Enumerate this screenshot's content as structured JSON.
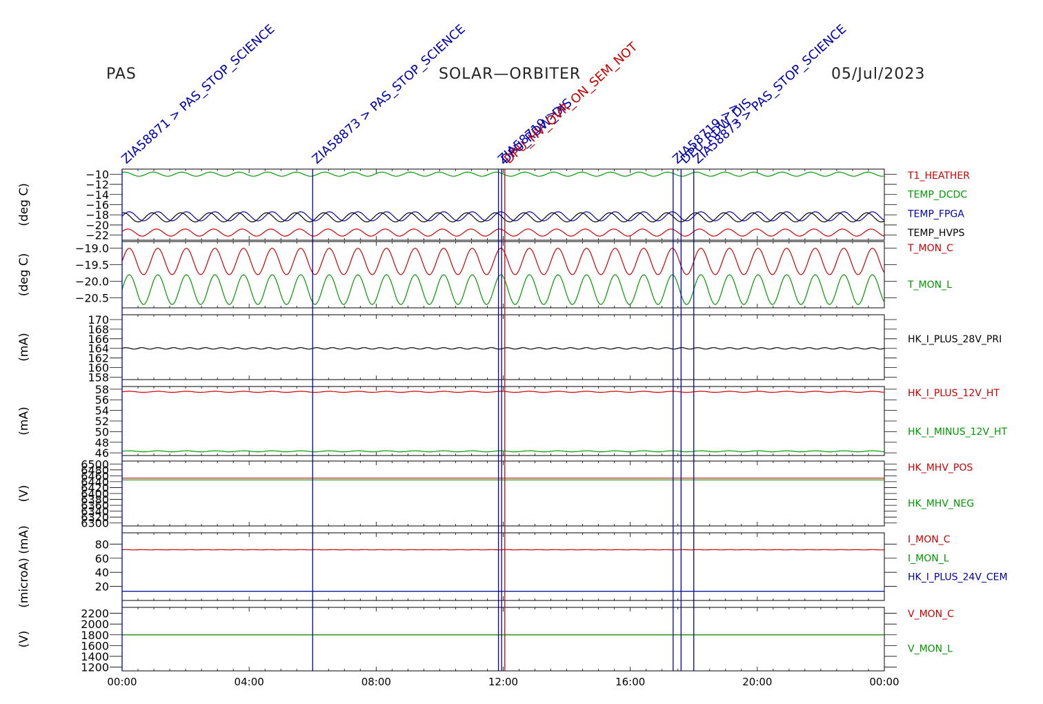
{
  "header": {
    "instrument": "PAS",
    "mission": "SOLAR—ORBITER",
    "date": "05/Jul/2023"
  },
  "colors": {
    "red": "#cc0000",
    "green": "#009900",
    "blue": "#0000aa",
    "black": "#000000"
  },
  "chart_data": {
    "type": "line",
    "x_range": [
      "00:00",
      "24:00"
    ],
    "x_ticks": [
      "00:00",
      "04:00",
      "08:00",
      "12:00",
      "16:00",
      "20:00",
      "00:00"
    ],
    "x_tick_hours": [
      0,
      4,
      8,
      12,
      16,
      20,
      24
    ],
    "events": [
      {
        "label": "ZIA58871 > PAS_STOP_SCIENCE",
        "hour": 0.0,
        "color": "#0000aa"
      },
      {
        "label": "ZIA58873 > PAS_STOP_SCIENCE",
        "hour": 6.0,
        "color": "#0000aa"
      },
      {
        "label": "ZIA58719 >>",
        "hour": 11.85,
        "color": "#0000aa"
      },
      {
        "label": "DPU_RDW_DIS",
        "hour": 11.95,
        "color": "#0000aa"
      },
      {
        "label": "DPU_HV_OVR_ON_SEM_NOT",
        "hour": 12.05,
        "color": "#cc0000"
      },
      {
        "label": "ZIA58719 >>",
        "hour": 17.35,
        "color": "#0000aa"
      },
      {
        "label": "DPU_RDW_DIS",
        "hour": 17.6,
        "color": "#0000aa"
      },
      {
        "label": "ZIA58873 > PAS_STOP_SCIENCE",
        "hour": 18.0,
        "color": "#0000aa"
      }
    ],
    "panels": [
      {
        "ylabel": "(deg C)",
        "ylim": [
          -23,
          -9
        ],
        "yticks": [
          -10,
          -12,
          -14,
          -16,
          -18,
          -20,
          -22
        ],
        "ytick_labels": [
          "−10",
          "−12",
          "−14",
          "−16",
          "−18",
          "−20",
          "−22"
        ],
        "series": [
          {
            "name": "T1_HEATHER",
            "color": "#cc0000",
            "base": -21.5,
            "amp": 0.7,
            "period": 0.9,
            "phase": 0.3
          },
          {
            "name": "TEMP_DCDC",
            "color": "#009900",
            "base": -10,
            "amp": 0.4,
            "period": 0.9,
            "phase": 1.0
          },
          {
            "name": "TEMP_FPGA",
            "color": "#0000aa",
            "base": -18.3,
            "amp": 0.9,
            "period": 0.9,
            "phase": 0.0
          },
          {
            "name": "TEMP_HVPS",
            "color": "#000000",
            "base": -18.5,
            "amp": 0.9,
            "period": 0.9,
            "phase": 1.2
          }
        ]
      },
      {
        "ylabel": "(deg C)",
        "ylim": [
          -20.8,
          -18.8
        ],
        "yticks": [
          -19.0,
          -19.5,
          -20.0,
          -20.5
        ],
        "ytick_labels": [
          "−19.0",
          "−19.5",
          "−20.0",
          "−20.5"
        ],
        "series": [
          {
            "name": "T_MON_C",
            "color": "#cc0000",
            "base": -19.4,
            "amp": 0.4,
            "period": 0.9,
            "phase": 0.0
          },
          {
            "name": "T_MON_L",
            "color": "#009900",
            "base": -20.25,
            "amp": 0.45,
            "period": 0.9,
            "phase": 0.0
          }
        ]
      },
      {
        "ylabel": "(mA)",
        "ylim": [
          157.5,
          171
        ],
        "yticks": [
          158,
          160,
          162,
          164,
          166,
          168,
          170
        ],
        "ytick_labels": [
          "158",
          "160",
          "162",
          "164",
          "166",
          "168",
          "170"
        ],
        "series": [
          {
            "name": "HK_I_PLUS_28V_PRI",
            "color": "#000000",
            "base": 164,
            "amp": 0.15,
            "period": 0.5,
            "phase": 0.0
          }
        ]
      },
      {
        "ylabel": "(mA)",
        "ylim": [
          45.5,
          58.5
        ],
        "yticks": [
          46,
          48,
          50,
          52,
          54,
          56,
          58
        ],
        "ytick_labels": [
          "46",
          "48",
          "50",
          "52",
          "54",
          "56",
          "58"
        ],
        "series": [
          {
            "name": "HK_I_PLUS_12V_HT",
            "color": "#cc0000",
            "base": 57.5,
            "amp": 0.1,
            "period": 0.9,
            "phase": 0.0
          },
          {
            "name": "HK_I_MINUS_12V_HT",
            "color": "#009900",
            "base": 46.3,
            "amp": 0.1,
            "period": 0.9,
            "phase": 0.0
          }
        ]
      },
      {
        "ylabel": "(V)",
        "ylim": [
          6290,
          6510
        ],
        "yticks": [
          6300,
          6320,
          6340,
          6360,
          6380,
          6400,
          6420,
          6440,
          6460,
          6480,
          6500
        ],
        "ytick_labels": [
          "6300",
          "6320",
          "6340",
          "6360",
          "6380",
          "6400",
          "6420",
          "6440",
          "6460",
          "6480",
          "6500"
        ],
        "series": [
          {
            "name": "HK_MHV_POS",
            "color": "#cc0000",
            "base": 6452,
            "amp": 0,
            "period": 1,
            "phase": 0
          },
          {
            "name": "HK_MHV_NEG",
            "color": "#009900",
            "base": 6446,
            "amp": 0,
            "period": 1,
            "phase": 0
          }
        ]
      },
      {
        "ylabel": "(microA) (mA)",
        "ylim": [
          0,
          96
        ],
        "yticks": [
          20,
          40,
          60,
          80
        ],
        "ytick_labels": [
          "20",
          "40",
          "60",
          "80"
        ],
        "series": [
          {
            "name": "I_MON_C",
            "color": "#cc0000",
            "base": 72,
            "amp": 0.2,
            "period": 0.5,
            "phase": 0.0
          },
          {
            "name": "I_MON_L",
            "color": "#009900",
            "base": 13,
            "amp": 0,
            "period": 1,
            "phase": 0
          },
          {
            "name": "HK_I_PLUS_24V_CEM",
            "color": "#0000aa",
            "base": 13,
            "amp": 0,
            "period": 1,
            "phase": 0
          }
        ]
      },
      {
        "ylabel": "(V)",
        "ylim": [
          1130,
          2310
        ],
        "yticks": [
          1200,
          1400,
          1600,
          1800,
          2000,
          2200
        ],
        "ytick_labels": [
          "1200",
          "1400",
          "1600",
          "1800",
          "2000",
          "2200"
        ],
        "series": [
          {
            "name": "V_MON_C",
            "color": "#cc0000",
            "base": 1800,
            "amp": 0,
            "period": 1,
            "phase": 0
          },
          {
            "name": "V_MON_L",
            "color": "#009900",
            "base": 1800,
            "amp": 0,
            "period": 1,
            "phase": 0
          }
        ]
      }
    ]
  }
}
